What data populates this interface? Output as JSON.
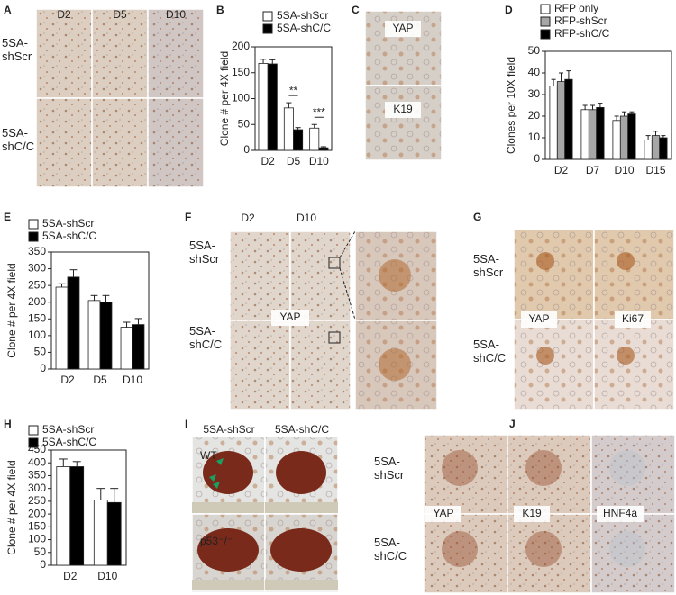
{
  "panel_letters": [
    "A",
    "B",
    "C",
    "D",
    "E",
    "F",
    "G",
    "H",
    "I",
    "J"
  ],
  "image_panels": {
    "A": {
      "columns": [
        "D2",
        "D5",
        "D10"
      ],
      "rows": [
        "5SA-shScr",
        "5SA-shC/C"
      ]
    },
    "C": {
      "labels": [
        "YAP",
        "K19"
      ]
    },
    "F": {
      "columns": [
        "D2",
        "D10"
      ],
      "rows": [
        "5SA-shScr",
        "5SA-shC/C"
      ],
      "labels": [
        "YAP"
      ]
    },
    "G": {
      "rows": [
        "5SA-shScr",
        "5SA-shC/C"
      ],
      "labels": [
        "YAP",
        "Ki67"
      ]
    },
    "I": {
      "columns": [
        "5SA-shScr",
        "5SA-shC/C"
      ],
      "rows": [
        "WT",
        "p53⁻/⁻"
      ]
    },
    "J": {
      "rows": [
        "5SA-shScr",
        "5SA-shC/C"
      ],
      "labels": [
        "YAP",
        "K19",
        "HNF4a"
      ]
    }
  },
  "chart_data": [
    {
      "type": "bar",
      "y_label": "Clone # per 4X field",
      "categories": [
        "D2",
        "D5",
        "D10"
      ],
      "series": [
        {
          "name": "5SA-shScr",
          "color": "#ffffff",
          "values": [
            168,
            82,
            43
          ],
          "errors": [
            8,
            10,
            7
          ]
        },
        {
          "name": "5SA-shC/C",
          "color": "#000000",
          "values": [
            167,
            40,
            5
          ],
          "errors": [
            8,
            4,
            2
          ]
        }
      ],
      "annotations": [
        "**",
        "***"
      ],
      "ylim": [
        0,
        200
      ],
      "yticks": [
        0,
        50,
        100,
        150,
        200
      ]
    },
    {
      "type": "bar",
      "y_label": "Clones per 10X field",
      "categories": [
        "D2",
        "D7",
        "D10",
        "D15"
      ],
      "series": [
        {
          "name": "RFP only",
          "color": "#ffffff",
          "values": [
            34,
            23,
            18,
            9
          ],
          "errors": [
            3,
            2,
            2,
            2
          ]
        },
        {
          "name": "RFP-shScr",
          "color": "#a6a6a6",
          "values": [
            36,
            23,
            20,
            11
          ],
          "errors": [
            4,
            2,
            2,
            2
          ]
        },
        {
          "name": "RFP-shC/C",
          "color": "#000000",
          "values": [
            37,
            24,
            21,
            10
          ],
          "errors": [
            4,
            2,
            1,
            1
          ]
        }
      ],
      "ylim": [
        0,
        50
      ],
      "yticks": [
        0,
        10,
        20,
        30,
        40,
        50
      ]
    },
    {
      "type": "bar",
      "y_label": "Clone # per 4X field",
      "categories": [
        "D2",
        "D5",
        "D10"
      ],
      "series": [
        {
          "name": "5SA-shScr",
          "color": "#ffffff",
          "values": [
            245,
            205,
            125
          ],
          "errors": [
            10,
            15,
            15
          ]
        },
        {
          "name": "5SA-shC/C",
          "color": "#000000",
          "values": [
            275,
            200,
            133
          ],
          "errors": [
            22,
            20,
            18
          ]
        }
      ],
      "ylim": [
        0,
        350
      ],
      "yticks": [
        0,
        50,
        100,
        150,
        200,
        250,
        300,
        350
      ]
    },
    {
      "type": "bar",
      "y_label": "Clone # per 4X field",
      "categories": [
        "D2",
        "D10"
      ],
      "series": [
        {
          "name": "5SA-shScr",
          "color": "#ffffff",
          "values": [
            385,
            255
          ],
          "errors": [
            30,
            45
          ]
        },
        {
          "name": "5SA-shC/C",
          "color": "#000000",
          "values": [
            385,
            245
          ],
          "errors": [
            20,
            55
          ]
        }
      ],
      "ylim": [
        0,
        450
      ],
      "yticks": [
        0,
        50,
        100,
        150,
        200,
        250,
        300,
        350,
        400,
        450
      ]
    }
  ]
}
